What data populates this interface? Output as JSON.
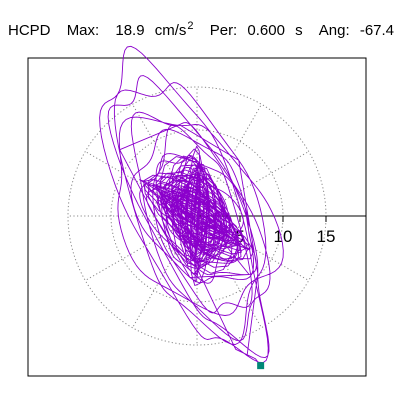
{
  "header": {
    "station": "HCPD",
    "max_label": "Max:",
    "max_value": "18.9",
    "max_unit": "cm/s",
    "max_unit_exp": "2",
    "per_label": "Per:",
    "per_value": "0.600",
    "per_unit": "s",
    "ang_label": "Ang:",
    "ang_value": "-67.4"
  },
  "chart_data": {
    "type": "polar-scatter-trace",
    "title": "",
    "axis": {
      "radial_ticks": [
        5,
        10,
        15
      ],
      "radial_tick_labels": [
        "5",
        "10",
        "15"
      ],
      "max_radius": 20,
      "spokes_deg": [
        0,
        30,
        60,
        90,
        120,
        150,
        180,
        210,
        240,
        270,
        300,
        330
      ],
      "grid": true
    },
    "colors": {
      "trace": "#8b00cc",
      "grid": "#888888",
      "end_marker": "#008877"
    },
    "trace": {
      "description_units": "cm/s^2, x = East, y = North",
      "major_axis_angle_deg": -67.4,
      "end_point": [
        7.4,
        -17.4
      ],
      "loops": [
        {
          "a": 18.5,
          "b": 6.2,
          "rot": -67,
          "cx": -1.4,
          "cy": 0.8
        },
        {
          "a": 16.8,
          "b": 5.4,
          "rot": -64,
          "cx": -0.6,
          "cy": 0.2
        },
        {
          "a": 15.2,
          "b": 7.0,
          "rot": -70,
          "cx": -0.8,
          "cy": 1.2
        },
        {
          "a": 13.5,
          "b": 5.8,
          "rot": -66,
          "cx": 0.2,
          "cy": -0.6
        },
        {
          "a": 12.0,
          "b": 8.2,
          "rot": -58,
          "cx": -0.4,
          "cy": 0.4
        },
        {
          "a": 10.8,
          "b": 4.6,
          "rot": -72,
          "cx": 0.6,
          "cy": -1.0
        },
        {
          "a": 9.2,
          "b": 6.0,
          "rot": -62,
          "cx": -0.2,
          "cy": 0.6
        },
        {
          "a": 8.0,
          "b": 5.0,
          "rot": -50,
          "cx": 0.4,
          "cy": -0.2
        },
        {
          "a": 7.2,
          "b": 3.8,
          "rot": -75,
          "cx": -0.6,
          "cy": 0.0
        },
        {
          "a": 6.0,
          "b": 4.2,
          "rot": -40,
          "cx": 0.0,
          "cy": -0.4
        },
        {
          "a": 5.0,
          "b": 3.0,
          "rot": -80,
          "cx": 0.2,
          "cy": 0.3
        },
        {
          "a": 4.0,
          "b": 2.8,
          "rot": -30,
          "cx": -0.3,
          "cy": -0.2
        },
        {
          "a": 3.2,
          "b": 2.2,
          "rot": -60,
          "cx": 0.1,
          "cy": 0.1
        }
      ]
    }
  }
}
